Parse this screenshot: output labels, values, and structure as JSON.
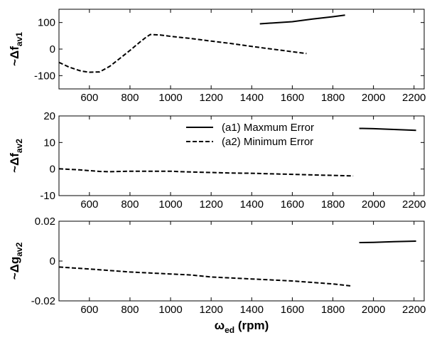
{
  "chart_data": [
    {
      "type": "line",
      "ylabel_main": "~Δf",
      "ylabel_sub": "av1",
      "xlim": [
        450,
        2250
      ],
      "ylim": [
        -150,
        150
      ],
      "xticks": [
        600,
        800,
        1000,
        1200,
        1400,
        1600,
        1800,
        2000,
        2200
      ],
      "yticks": [
        -100,
        0,
        100
      ],
      "series": [
        {
          "style": "solid",
          "x": [
            1440,
            1600,
            1700,
            1800,
            1860
          ],
          "y": [
            95,
            103,
            113,
            122,
            128
          ]
        },
        {
          "style": "dashed",
          "x": [
            450,
            500,
            560,
            600,
            650,
            700,
            750,
            800,
            850,
            880,
            900,
            950,
            1000,
            1100,
            1200,
            1300,
            1400,
            1500,
            1600,
            1670
          ],
          "y": [
            -50,
            -68,
            -83,
            -87,
            -86,
            -65,
            -35,
            -5,
            27,
            45,
            55,
            53,
            48,
            40,
            30,
            21,
            10,
            0,
            -10,
            -17
          ]
        }
      ]
    },
    {
      "type": "line",
      "ylabel_main": "~Δf",
      "ylabel_sub": "av2",
      "xlim": [
        450,
        2250
      ],
      "ylim": [
        -10,
        20
      ],
      "xticks": [
        600,
        800,
        1000,
        1200,
        1400,
        1600,
        1800,
        2000,
        2200
      ],
      "yticks": [
        -10,
        0,
        10,
        20
      ],
      "legend": {
        "position": "top-center",
        "entries": [
          {
            "label": "(a1) Maxmum Error",
            "style": "solid"
          },
          {
            "label": "(a2) Minimum Error",
            "style": "dashed"
          }
        ]
      },
      "series": [
        {
          "style": "solid",
          "x": [
            1930,
            2000,
            2100,
            2210
          ],
          "y": [
            15.3,
            15.2,
            14.9,
            14.6
          ]
        },
        {
          "style": "dashed",
          "x": [
            450,
            550,
            650,
            700,
            800,
            900,
            1000,
            1050,
            1100,
            1200,
            1300,
            1400,
            1500,
            1600,
            1700,
            1800,
            1900
          ],
          "y": [
            0.1,
            -0.3,
            -0.9,
            -1.0,
            -0.8,
            -0.8,
            -0.8,
            -1.0,
            -1.1,
            -1.3,
            -1.5,
            -1.6,
            -1.8,
            -2.0,
            -2.2,
            -2.4,
            -2.6
          ]
        }
      ]
    },
    {
      "type": "line",
      "ylabel_main": "~Δg",
      "ylabel_sub": "av2",
      "xlabel_main": "ω",
      "xlabel_sub": "ed",
      "xlabel_unit": " (rpm)",
      "xlim": [
        450,
        2250
      ],
      "ylim": [
        -0.02,
        0.02
      ],
      "xticks": [
        600,
        800,
        1000,
        1200,
        1400,
        1600,
        1800,
        2000,
        2200
      ],
      "yticks": [
        -0.02,
        0,
        0.02
      ],
      "ytick_labels": [
        "-0.02",
        "0",
        "0.02"
      ],
      "series": [
        {
          "style": "solid",
          "x": [
            1930,
            2000,
            2100,
            2210
          ],
          "y": [
            0.0093,
            0.0094,
            0.0097,
            0.01
          ]
        },
        {
          "style": "dashed",
          "x": [
            450,
            600,
            800,
            1000,
            1100,
            1200,
            1400,
            1600,
            1800,
            1890
          ],
          "y": [
            -0.003,
            -0.004,
            -0.0055,
            -0.0065,
            -0.007,
            -0.008,
            -0.009,
            -0.01,
            -0.0115,
            -0.0125
          ]
        }
      ]
    }
  ]
}
